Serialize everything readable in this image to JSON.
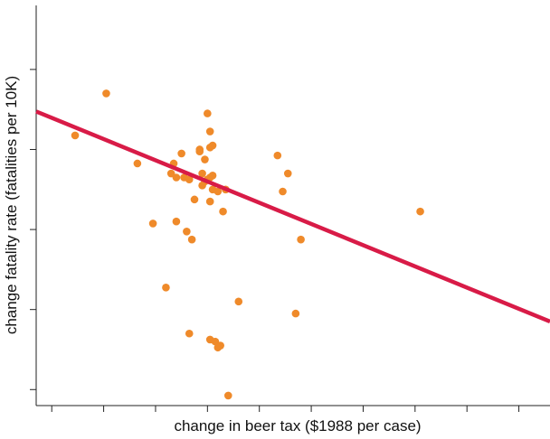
{
  "chart_data": {
    "type": "scatter",
    "title": "",
    "xlabel": "change in beer tax ($1988 per case)",
    "ylabel": "change fatality rate (fatalities per 10K)",
    "xlim": [
      -0.66,
      1.32
    ],
    "ylim": [
      -1.08,
      0.92
    ],
    "x_ticks": [
      -0.6,
      -0.4,
      -0.2,
      0.0,
      0.2,
      0.4,
      0.6,
      0.8,
      1.0,
      1.2
    ],
    "y_ticks": [
      -1.0,
      -0.6,
      -0.2,
      0.2,
      0.6
    ],
    "show_tick_labels": false,
    "grid": false,
    "point_color": "#EF8A2A",
    "line_color": "#D81B47",
    "points": [
      {
        "x": -0.51,
        "y": 0.27
      },
      {
        "x": -0.39,
        "y": 0.48
      },
      {
        "x": -0.27,
        "y": 0.13
      },
      {
        "x": -0.21,
        "y": -0.17
      },
      {
        "x": -0.16,
        "y": -0.49
      },
      {
        "x": -0.14,
        "y": 0.08
      },
      {
        "x": -0.13,
        "y": 0.13
      },
      {
        "x": -0.12,
        "y": 0.06
      },
      {
        "x": -0.12,
        "y": -0.16
      },
      {
        "x": -0.1,
        "y": 0.18
      },
      {
        "x": -0.09,
        "y": 0.06
      },
      {
        "x": -0.08,
        "y": -0.21
      },
      {
        "x": -0.07,
        "y": 0.05
      },
      {
        "x": -0.07,
        "y": -0.72
      },
      {
        "x": -0.06,
        "y": -0.25
      },
      {
        "x": -0.05,
        "y": -0.05
      },
      {
        "x": -0.03,
        "y": 0.2
      },
      {
        "x": -0.03,
        "y": 0.19
      },
      {
        "x": -0.02,
        "y": 0.08
      },
      {
        "x": -0.02,
        "y": 0.02
      },
      {
        "x": -0.01,
        "y": 0.04
      },
      {
        "x": -0.01,
        "y": 0.15
      },
      {
        "x": 0.0,
        "y": 0.38
      },
      {
        "x": 0.0,
        "y": 0.05
      },
      {
        "x": 0.01,
        "y": 0.29
      },
      {
        "x": 0.01,
        "y": 0.21
      },
      {
        "x": 0.01,
        "y": 0.06
      },
      {
        "x": 0.01,
        "y": -0.06
      },
      {
        "x": 0.01,
        "y": -0.75
      },
      {
        "x": 0.02,
        "y": 0.22
      },
      {
        "x": 0.02,
        "y": 0.07
      },
      {
        "x": 0.02,
        "y": 0.0
      },
      {
        "x": 0.03,
        "y": -0.76
      },
      {
        "x": 0.04,
        "y": -0.01
      },
      {
        "x": 0.04,
        "y": -0.79
      },
      {
        "x": 0.05,
        "y": -0.78
      },
      {
        "x": 0.06,
        "y": -0.11
      },
      {
        "x": 0.07,
        "y": 0.0
      },
      {
        "x": 0.08,
        "y": -1.03
      },
      {
        "x": 0.12,
        "y": -0.56
      },
      {
        "x": 0.27,
        "y": 0.17
      },
      {
        "x": 0.29,
        "y": -0.01
      },
      {
        "x": 0.31,
        "y": 0.08
      },
      {
        "x": 0.34,
        "y": -0.62
      },
      {
        "x": 0.36,
        "y": -0.25
      },
      {
        "x": 0.82,
        "y": -0.11
      }
    ],
    "regression_line": {
      "x": [
        -0.66,
        1.32
      ],
      "y": [
        0.39,
        -0.66
      ]
    }
  }
}
